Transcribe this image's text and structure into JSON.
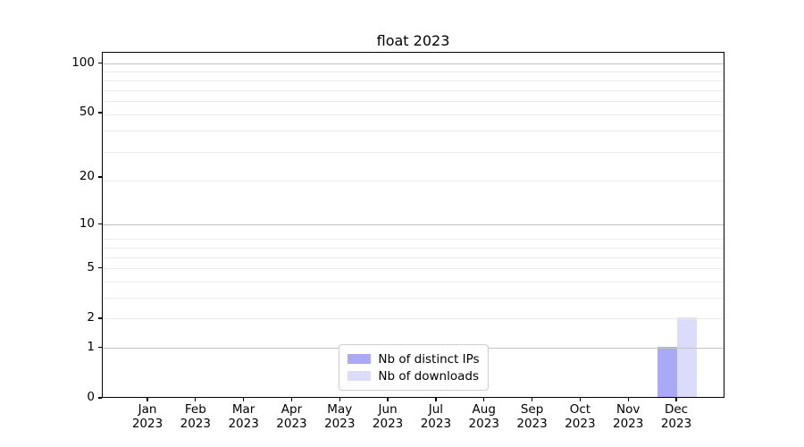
{
  "chart_data": {
    "type": "bar",
    "title": "float 2023",
    "categories": [
      "Jan 2023",
      "Feb 2023",
      "Mar 2023",
      "Apr 2023",
      "May 2023",
      "Jun 2023",
      "Jul 2023",
      "Aug 2023",
      "Sep 2023",
      "Oct 2023",
      "Nov 2023",
      "Dec 2023"
    ],
    "series": [
      {
        "name": "Nb of distinct IPs",
        "color": "#a9a9f5",
        "values": [
          0,
          0,
          0,
          0,
          0,
          0,
          0,
          0,
          0,
          0,
          0,
          1
        ]
      },
      {
        "name": "Nb of downloads",
        "color": "#dbdbfa",
        "values": [
          0,
          0,
          0,
          0,
          0,
          0,
          0,
          0,
          0,
          0,
          0,
          2
        ]
      }
    ],
    "xlabel": "",
    "ylabel": "",
    "yscale": "log10(1+y)",
    "ylim": [
      0,
      117
    ],
    "yticks_labeled": [
      0,
      1,
      2,
      5,
      10,
      20,
      50,
      100
    ],
    "yticks_major_grid": [
      1,
      10,
      100
    ],
    "yticks_minor_grid": [
      2,
      3,
      4,
      5,
      6,
      7,
      8,
      19,
      29,
      39,
      49,
      59,
      69,
      79,
      89
    ],
    "grid": "horizontal",
    "legend_position": "lower center",
    "colors": {
      "grid_major": "#c3c3c3",
      "grid_minor": "#ebebeb",
      "spine": "#000000",
      "text": "#000000",
      "legend_border": "#cccccc",
      "background": "#ffffff"
    }
  }
}
